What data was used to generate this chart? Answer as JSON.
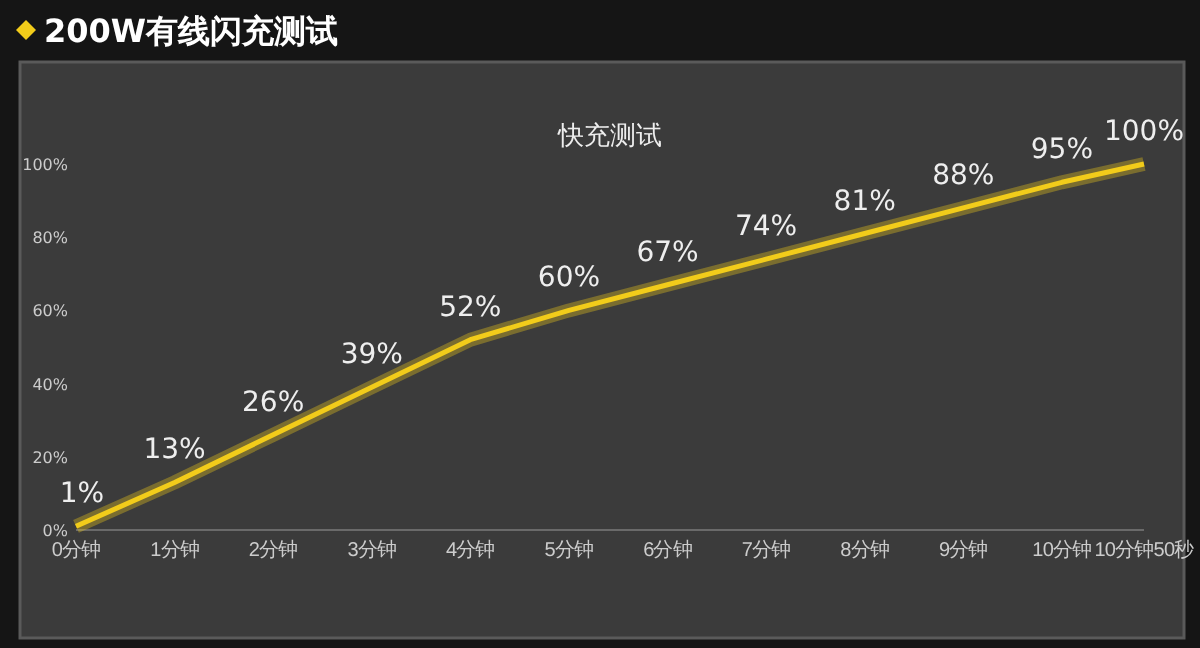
{
  "chart_data": {
    "type": "line",
    "title": "200W有线闪充测试",
    "subtitle": "快充测试",
    "x": [
      0,
      1,
      2,
      3,
      4,
      5,
      6,
      7,
      8,
      9,
      10,
      10.833
    ],
    "xlim": [
      0,
      10.833
    ],
    "xticks": [
      {
        "value": 0,
        "label": "0分钟"
      },
      {
        "value": 1,
        "label": "1分钟"
      },
      {
        "value": 2,
        "label": "2分钟"
      },
      {
        "value": 3,
        "label": "3分钟"
      },
      {
        "value": 4,
        "label": "4分钟"
      },
      {
        "value": 5,
        "label": "5分钟"
      },
      {
        "value": 6,
        "label": "6分钟"
      },
      {
        "value": 7,
        "label": "7分钟"
      },
      {
        "value": 8,
        "label": "8分钟"
      },
      {
        "value": 9,
        "label": "9分钟"
      },
      {
        "value": 10,
        "label": "10分钟"
      },
      {
        "value": 10.833,
        "label": "10分钟50秒"
      }
    ],
    "ylim": [
      0,
      100
    ],
    "yticks": [
      {
        "value": 0,
        "label": "0%"
      },
      {
        "value": 20,
        "label": "20%"
      },
      {
        "value": 40,
        "label": "40%"
      },
      {
        "value": 60,
        "label": "60%"
      },
      {
        "value": 80,
        "label": "80%"
      },
      {
        "value": 100,
        "label": "100%"
      }
    ],
    "series": [
      {
        "color": "#f2cc1a",
        "values": [
          1,
          13,
          26,
          39,
          52,
          60,
          67,
          74,
          81,
          88,
          95,
          100
        ],
        "value_labels": [
          "1%",
          "13%",
          "26%",
          "39%",
          "52%",
          "60%",
          "67%",
          "74%",
          "81%",
          "88%",
          "95%",
          "100%"
        ]
      }
    ],
    "grid": false,
    "marker": "none",
    "line_style": "solid"
  }
}
